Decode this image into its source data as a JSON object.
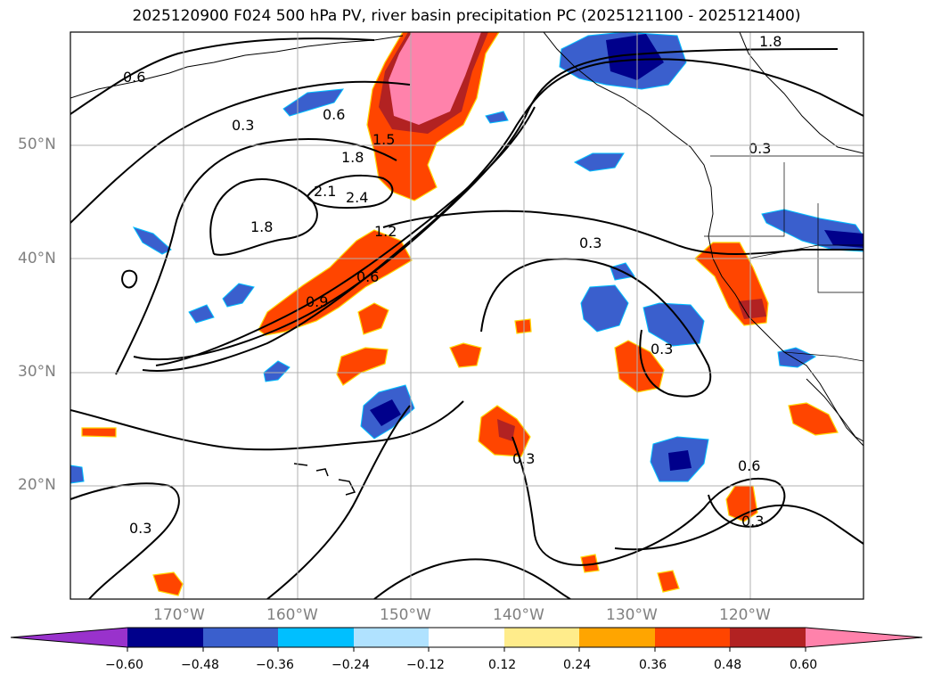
{
  "title": "2025120900 F024 500 hPa PV, river basin precipitation PC (2025121100 - 2025121400)",
  "latitude_labels": [
    "50°N",
    "40°N",
    "30°N",
    "20°N"
  ],
  "longitude_labels": [
    "170°W",
    "160°W",
    "150°W",
    "140°W",
    "130°W",
    "120°W"
  ],
  "contour_labels": [
    "0.6",
    "0.3",
    "0.6",
    "1.8",
    "1.5",
    "2.1",
    "2.4",
    "1.8",
    "1.2",
    "0.9",
    "0.6",
    "0.3",
    "0.3",
    "0.3",
    "1.8",
    "0.3",
    "0.6",
    "0.3",
    "0.3"
  ],
  "colorbar": {
    "tick_labels": [
      "−0.60",
      "−0.48",
      "−0.36",
      "−0.24",
      "−0.12",
      "0.12",
      "0.24",
      "0.36",
      "0.48",
      "0.60"
    ],
    "colors": [
      "#9932CC",
      "#00008B",
      "#3A5FCD",
      "#00BFFF",
      "#B0E2FF",
      "#FFFFFF",
      "#FFEC8B",
      "#FFA500",
      "#FF4500",
      "#B22222",
      "#FF82AB"
    ]
  }
}
